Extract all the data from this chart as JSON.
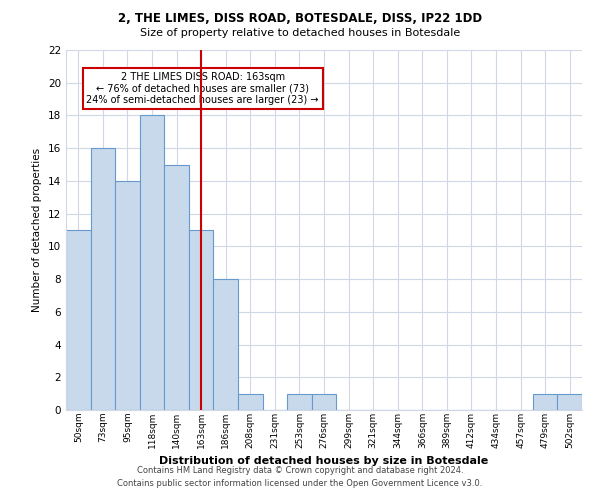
{
  "title1": "2, THE LIMES, DISS ROAD, BOTESDALE, DISS, IP22 1DD",
  "title2": "Size of property relative to detached houses in Botesdale",
  "xlabel": "Distribution of detached houses by size in Botesdale",
  "ylabel": "Number of detached properties",
  "bar_labels": [
    "50sqm",
    "73sqm",
    "95sqm",
    "118sqm",
    "140sqm",
    "163sqm",
    "186sqm",
    "208sqm",
    "231sqm",
    "253sqm",
    "276sqm",
    "299sqm",
    "321sqm",
    "344sqm",
    "366sqm",
    "389sqm",
    "412sqm",
    "434sqm",
    "457sqm",
    "479sqm",
    "502sqm"
  ],
  "bar_values": [
    11,
    16,
    14,
    18,
    15,
    11,
    8,
    1,
    0,
    1,
    1,
    0,
    0,
    0,
    0,
    0,
    0,
    0,
    0,
    1,
    1
  ],
  "bar_color": "#c9d9ec",
  "bar_edge_color": "#6699cc",
  "highlight_index": 5,
  "highlight_line_color": "#cc0000",
  "annotation_line1": "2 THE LIMES DISS ROAD: 163sqm",
  "annotation_line2": "← 76% of detached houses are smaller (73)",
  "annotation_line3": "24% of semi-detached houses are larger (23) →",
  "annotation_box_edgecolor": "#cc0000",
  "ylim": [
    0,
    22
  ],
  "yticks": [
    0,
    2,
    4,
    6,
    8,
    10,
    12,
    14,
    16,
    18,
    20,
    22
  ],
  "footer1": "Contains HM Land Registry data © Crown copyright and database right 2024.",
  "footer2": "Contains public sector information licensed under the Open Government Licence v3.0.",
  "bg_color": "#ffffff",
  "grid_color": "#d0d8e8"
}
